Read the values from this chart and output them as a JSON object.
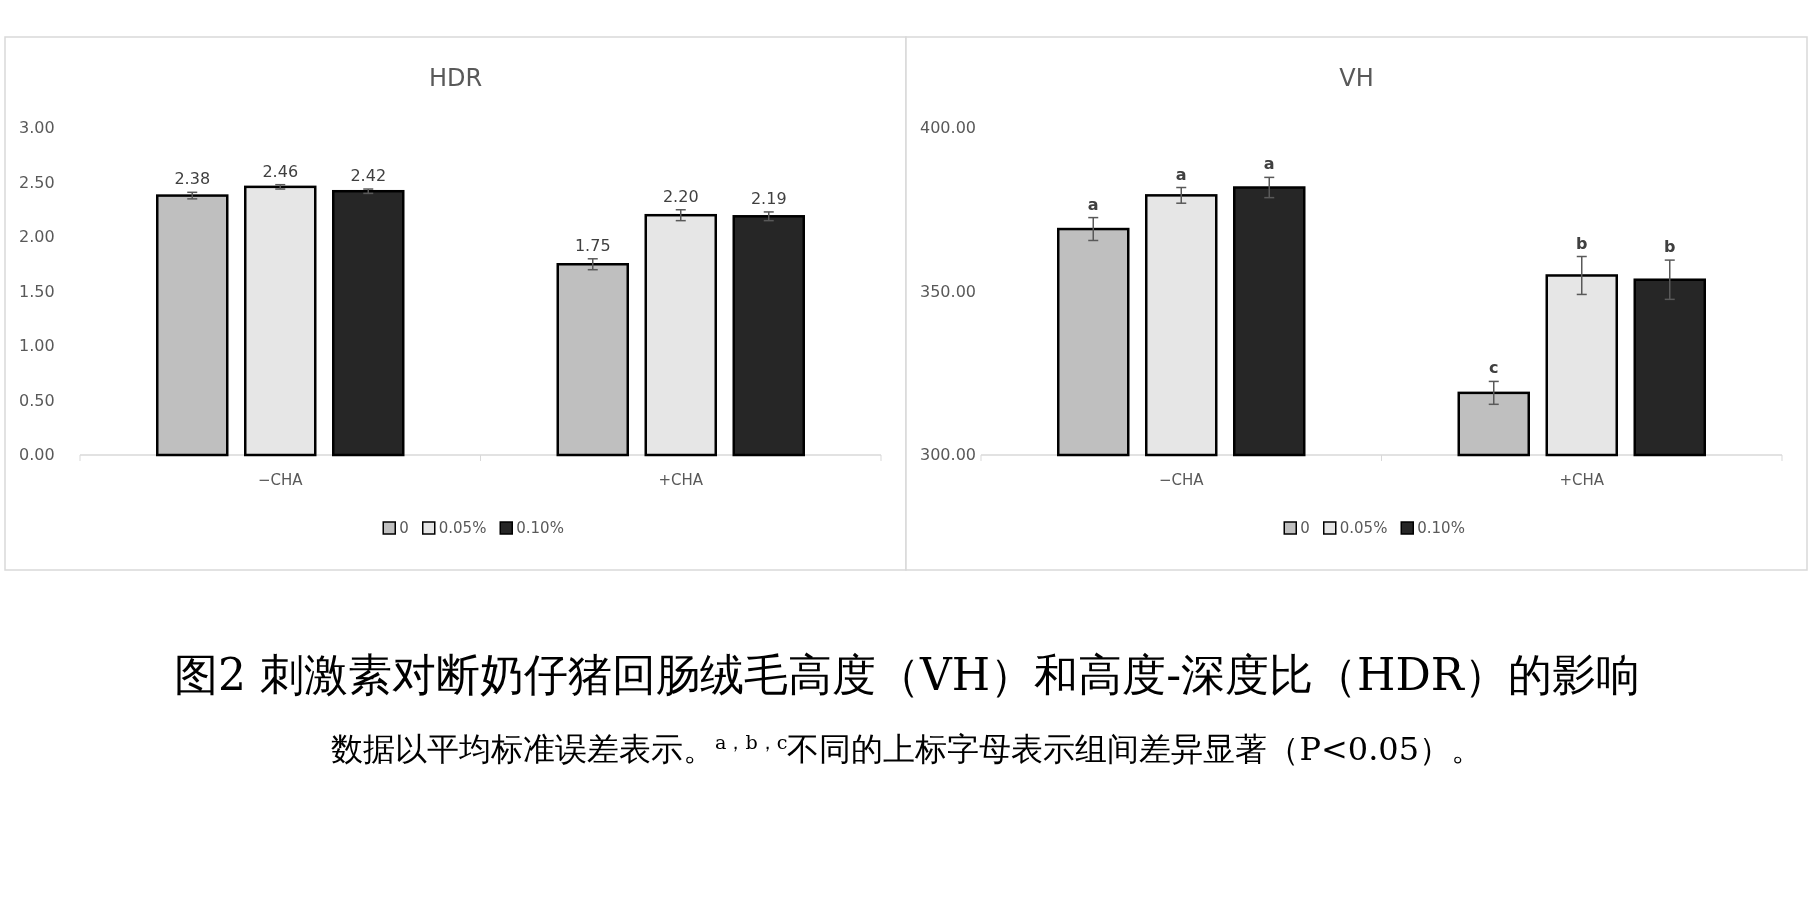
{
  "chart_data": [
    {
      "type": "bar",
      "title": "HDR",
      "categories": [
        "−CHA",
        "+CHA"
      ],
      "ylim": [
        0,
        3
      ],
      "yticks": [
        {
          "value": 0,
          "label": "0.00"
        },
        {
          "value": 0.5,
          "label": "0.50"
        },
        {
          "value": 1,
          "label": "1.00"
        },
        {
          "value": 1.5,
          "label": "1.50"
        },
        {
          "value": 2,
          "label": "2.00"
        },
        {
          "value": 2.5,
          "label": "2.50"
        },
        {
          "value": 3,
          "label": "3.00"
        }
      ],
      "legend": "bottom",
      "series": [
        {
          "name": "0",
          "color": "#bfbfbf",
          "values": [
            2.38,
            1.75
          ],
          "errors": [
            0.03,
            0.05
          ],
          "value_labels": [
            "2.38",
            "1.75"
          ]
        },
        {
          "name": "0.05%",
          "color": "#e6e6e6",
          "values": [
            2.46,
            2.2
          ],
          "errors": [
            0.02,
            0.05
          ],
          "value_labels": [
            "2.46",
            "2.20"
          ]
        },
        {
          "name": "0.10%",
          "color": "#262626",
          "values": [
            2.42,
            2.19
          ],
          "errors": [
            0.02,
            0.04
          ],
          "value_labels": [
            "2.42",
            "2.19"
          ]
        }
      ],
      "annotations": [
        "图2 刺激素对断奶仔猪回肠绒毛高度（VH）和高度-深度比（HDR）的影响",
        "数据以平均标准误差表示。$^{a，b，c}$不同的上标字母表示组间差异显著（P<0.05）。"
      ]
    },
    {
      "type": "bar",
      "title": "VH",
      "categories": [
        "−CHA",
        "+CHA"
      ],
      "ylim": [
        300,
        400
      ],
      "yticks": [
        {
          "value": 300,
          "label": "300.00"
        },
        {
          "value": 350,
          "label": "350.00"
        },
        {
          "value": 400,
          "label": "400.00"
        }
      ],
      "legend": "bottom",
      "series": [
        {
          "name": "0",
          "color": "#bfbfbf",
          "values": [
            369.1,
            319.0
          ],
          "errors": [
            3.5,
            3.5
          ],
          "value_labels": [
            "a",
            "c"
          ]
        },
        {
          "name": "0.05%",
          "color": "#e6e6e6",
          "values": [
            379.4,
            354.9
          ],
          "errors": [
            2.4,
            5.8
          ],
          "value_labels": [
            "a",
            "b"
          ]
        },
        {
          "name": "0.10%",
          "color": "#262626",
          "values": [
            381.8,
            353.6
          ],
          "errors": [
            3.1,
            6.0
          ],
          "value_labels": [
            "a",
            "b"
          ]
        }
      ]
    }
  ]
}
